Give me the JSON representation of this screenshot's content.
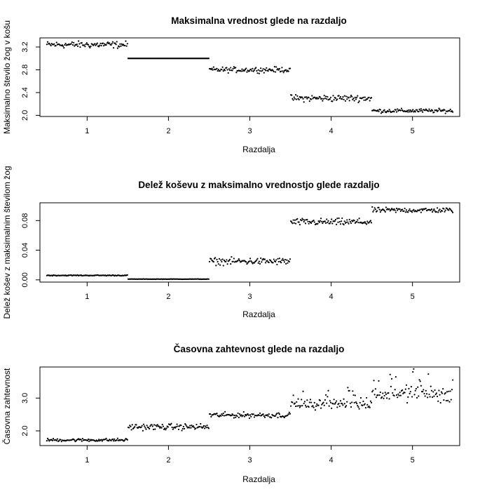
{
  "chart_data": [
    {
      "type": "scatter",
      "title": "Maksimalna vrednost glede na razdaljo",
      "xlabel": "Razdalja",
      "ylabel": "Maksimalno število žog v košu",
      "xlim": [
        0.42,
        5.58
      ],
      "ylim": [
        1.98,
        3.36
      ],
      "xticks": [
        1,
        2,
        3,
        4,
        5
      ],
      "yticks": [
        2.0,
        2.4,
        2.8,
        3.2
      ],
      "ytick_labels": [
        "2.0",
        "2.4",
        "2.8",
        "3.2"
      ],
      "point_color": "#000000",
      "grid": false,
      "series": [
        {
          "x_range": [
            0.5,
            1.5
          ],
          "center": 3.24,
          "spread": 0.05,
          "count": 100
        },
        {
          "x_range": [
            1.5,
            2.5
          ],
          "center": 3.0,
          "spread": 0.0,
          "count": 100
        },
        {
          "x_range": [
            2.5,
            3.5
          ],
          "center": 2.8,
          "spread": 0.04,
          "count": 100
        },
        {
          "x_range": [
            3.5,
            4.5
          ],
          "center": 2.3,
          "spread": 0.05,
          "count": 100
        },
        {
          "x_range": [
            4.5,
            5.5
          ],
          "center": 2.08,
          "spread": 0.03,
          "count": 100
        }
      ]
    },
    {
      "type": "scatter",
      "title": "Delež koševu z maksimalno vrednostjo glede razdaljo",
      "xlabel": "Razdalja",
      "ylabel": "Delež košev z maksimalnim številom žog",
      "xlim": [
        0.42,
        5.58
      ],
      "ylim": [
        -0.003,
        0.104
      ],
      "xticks": [
        1,
        2,
        3,
        4,
        5
      ],
      "yticks": [
        0.0,
        0.04,
        0.08
      ],
      "ytick_labels": [
        "0.00",
        "0.04",
        "0.08"
      ],
      "point_color": "#000000",
      "grid": false,
      "series": [
        {
          "x_range": [
            0.5,
            1.5
          ],
          "center": 0.006,
          "spread": 0.0005,
          "count": 100
        },
        {
          "x_range": [
            1.5,
            2.5
          ],
          "center": 0.001,
          "spread": 0.0002,
          "count": 100
        },
        {
          "x_range": [
            2.5,
            3.5
          ],
          "center": 0.025,
          "spread": 0.004,
          "count": 100
        },
        {
          "x_range": [
            3.5,
            4.5
          ],
          "center": 0.078,
          "spread": 0.004,
          "count": 100
        },
        {
          "x_range": [
            4.5,
            5.5
          ],
          "center": 0.094,
          "spread": 0.003,
          "count": 100
        }
      ]
    },
    {
      "type": "scatter",
      "title": "Časovna zahtevnost glede na razdaljo",
      "xlabel": "Razdalja",
      "ylabel": "Časovna zahtevnost",
      "xlim": [
        0.42,
        5.58
      ],
      "ylim": [
        1.55,
        3.95
      ],
      "xticks": [
        1,
        2,
        3,
        4,
        5
      ],
      "yticks": [
        2.0,
        3.0
      ],
      "ytick_labels": [
        "2.0",
        "3.0"
      ],
      "point_color": "#000000",
      "grid": false,
      "series": [
        {
          "x_range": [
            0.5,
            1.5
          ],
          "center": 1.72,
          "spread": 0.04,
          "count": 100
        },
        {
          "x_range": [
            1.5,
            2.5
          ],
          "center": 2.12,
          "spread": 0.08,
          "count": 100
        },
        {
          "x_range": [
            2.5,
            3.5
          ],
          "center": 2.48,
          "spread": 0.07,
          "count": 100
        },
        {
          "x_range": [
            3.5,
            4.5
          ],
          "center": 2.82,
          "spread": 0.12,
          "count": 100
        },
        {
          "x_range": [
            4.5,
            5.5
          ],
          "center": 3.15,
          "spread": 0.2,
          "count": 100
        }
      ]
    }
  ]
}
